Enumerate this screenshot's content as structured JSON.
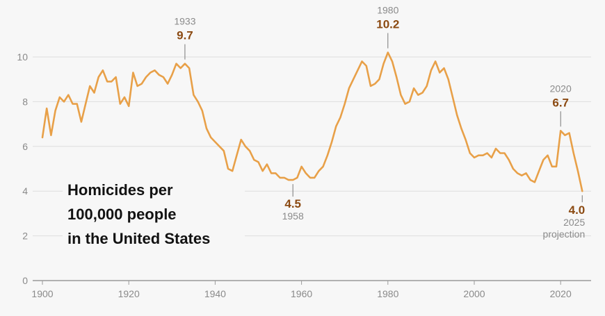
{
  "chart_data": {
    "type": "line",
    "title": "Homicides per 100,000 people in the United States",
    "title_lines": [
      "Homicides per",
      "100,000 people",
      "in the United States"
    ],
    "xlabel": "",
    "ylabel": "",
    "xlim": [
      1900,
      2025
    ],
    "ylim": [
      0,
      10.6
    ],
    "x_ticks": [
      1900,
      1920,
      1940,
      1960,
      1980,
      2000,
      2020
    ],
    "y_ticks": [
      0,
      2,
      4,
      6,
      8,
      10
    ],
    "grid": true,
    "line_color": "#e8a048",
    "x": [
      1900,
      1901,
      1902,
      1903,
      1904,
      1905,
      1906,
      1907,
      1908,
      1909,
      1910,
      1911,
      1912,
      1913,
      1914,
      1915,
      1916,
      1917,
      1918,
      1919,
      1920,
      1921,
      1922,
      1923,
      1924,
      1925,
      1926,
      1927,
      1928,
      1929,
      1930,
      1931,
      1932,
      1933,
      1934,
      1935,
      1936,
      1937,
      1938,
      1939,
      1940,
      1941,
      1942,
      1943,
      1944,
      1945,
      1946,
      1947,
      1948,
      1949,
      1950,
      1951,
      1952,
      1953,
      1954,
      1955,
      1956,
      1957,
      1958,
      1959,
      1960,
      1961,
      1962,
      1963,
      1964,
      1965,
      1966,
      1967,
      1968,
      1969,
      1970,
      1971,
      1972,
      1973,
      1974,
      1975,
      1976,
      1977,
      1978,
      1979,
      1980,
      1981,
      1982,
      1983,
      1984,
      1985,
      1986,
      1987,
      1988,
      1989,
      1990,
      1991,
      1992,
      1993,
      1994,
      1995,
      1996,
      1997,
      1998,
      1999,
      2000,
      2001,
      2002,
      2003,
      2004,
      2005,
      2006,
      2007,
      2008,
      2009,
      2010,
      2011,
      2012,
      2013,
      2014,
      2015,
      2016,
      2017,
      2018,
      2019,
      2020,
      2021,
      2022,
      2023,
      2024,
      2025
    ],
    "y": [
      6.4,
      7.7,
      6.5,
      7.6,
      8.2,
      8.0,
      8.3,
      7.9,
      7.9,
      7.1,
      7.9,
      8.7,
      8.4,
      9.1,
      9.4,
      8.9,
      8.9,
      9.1,
      7.9,
      8.2,
      7.8,
      9.3,
      8.7,
      8.8,
      9.1,
      9.3,
      9.4,
      9.2,
      9.1,
      8.8,
      9.2,
      9.7,
      9.5,
      9.7,
      9.5,
      8.3,
      8.0,
      7.6,
      6.8,
      6.4,
      6.2,
      6.0,
      5.8,
      5.0,
      4.9,
      5.6,
      6.3,
      6.0,
      5.8,
      5.4,
      5.3,
      4.9,
      5.2,
      4.8,
      4.8,
      4.6,
      4.6,
      4.5,
      4.5,
      4.6,
      5.1,
      4.8,
      4.6,
      4.6,
      4.9,
      5.1,
      5.6,
      6.2,
      6.9,
      7.3,
      7.9,
      8.6,
      9.0,
      9.4,
      9.8,
      9.6,
      8.7,
      8.8,
      9.0,
      9.7,
      10.2,
      9.8,
      9.1,
      8.3,
      7.9,
      8.0,
      8.6,
      8.3,
      8.4,
      8.7,
      9.4,
      9.8,
      9.3,
      9.5,
      9.0,
      8.2,
      7.4,
      6.8,
      6.3,
      5.7,
      5.5,
      5.6,
      5.6,
      5.7,
      5.5,
      5.9,
      5.7,
      5.7,
      5.4,
      5.0,
      4.8,
      4.7,
      4.8,
      4.5,
      4.4,
      4.9,
      5.4,
      5.6,
      5.1,
      5.1,
      6.7,
      6.5,
      6.6,
      5.7,
      4.9,
      4.0
    ],
    "annotations": [
      {
        "year": "1933",
        "value": "9.7",
        "position": "above"
      },
      {
        "year": "1958",
        "value": "4.5",
        "position": "below"
      },
      {
        "year": "1980",
        "value": "10.2",
        "position": "above"
      },
      {
        "year": "2020",
        "value": "6.7",
        "position": "above"
      },
      {
        "year": "2025",
        "value": "4.0",
        "position": "below",
        "note": "projection"
      }
    ]
  }
}
